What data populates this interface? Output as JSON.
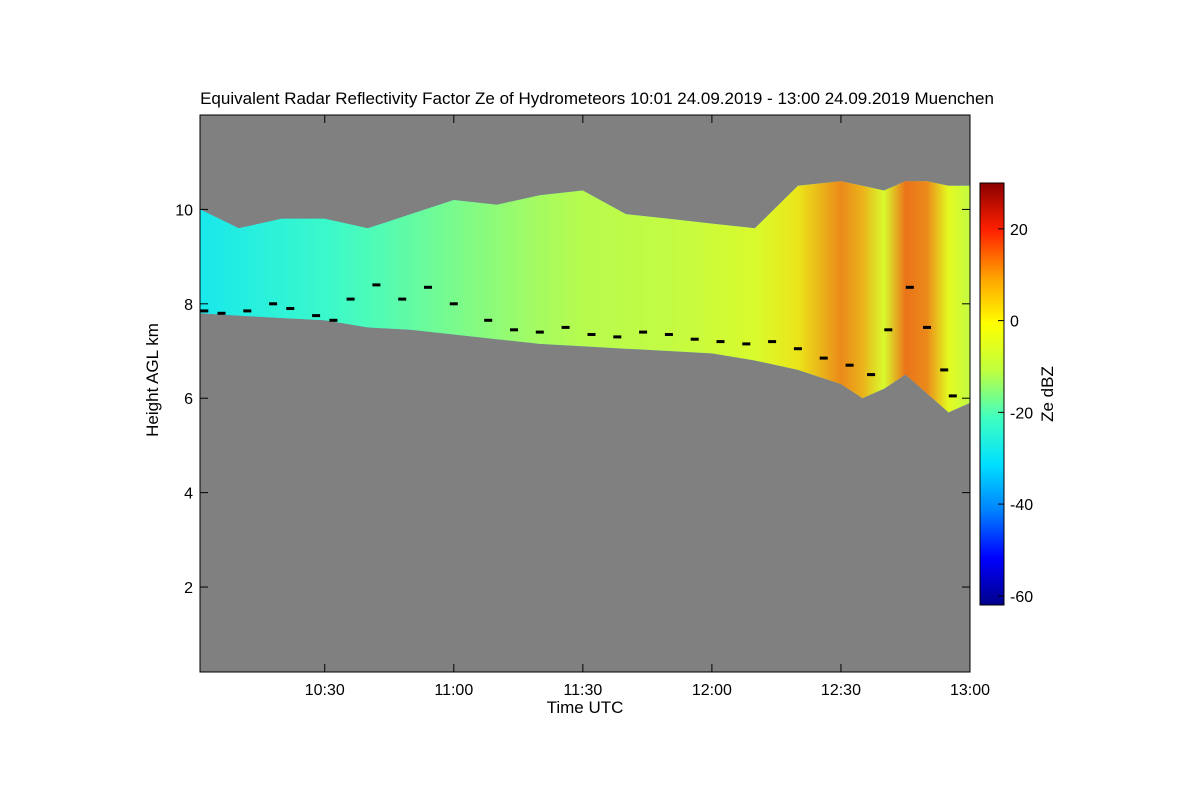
{
  "chart_data": {
    "type": "heatmap",
    "title": "Equivalent Radar Reflectivity Factor Ze of Hydrometeors   10:01 24.09.2019 - 13:00 24.09.2019 Muenchen",
    "xlabel": "Time UTC",
    "ylabel": "Height AGL km",
    "colorbar_label": "Ze dBZ",
    "x_range_minutes_utc": [
      601,
      780
    ],
    "ylim": [
      0.2,
      12.0
    ],
    "colorbar_range": [
      -62,
      30
    ],
    "x_ticks": [
      {
        "minute": 630,
        "label": "10:30"
      },
      {
        "minute": 660,
        "label": "11:00"
      },
      {
        "minute": 690,
        "label": "11:30"
      },
      {
        "minute": 720,
        "label": "12:00"
      },
      {
        "minute": 750,
        "label": "12:30"
      },
      {
        "minute": 780,
        "label": "13:00"
      }
    ],
    "y_ticks": [
      {
        "value": 2,
        "label": "2"
      },
      {
        "value": 4,
        "label": "4"
      },
      {
        "value": 6,
        "label": "6"
      },
      {
        "value": 8,
        "label": "8"
      },
      {
        "value": 10,
        "label": "10"
      }
    ],
    "colorbar_ticks": [
      {
        "value": 20,
        "label": "20"
      },
      {
        "value": 0,
        "label": "0"
      },
      {
        "value": -20,
        "label": "-20"
      },
      {
        "value": -40,
        "label": "-40"
      },
      {
        "value": -60,
        "label": "-60"
      }
    ],
    "colors": {
      "background": "#808080",
      "colormap": [
        "#00008b",
        "#0000ff",
        "#0080ff",
        "#00e0ff",
        "#40ffc0",
        "#c0ff40",
        "#ffff00",
        "#ffa000",
        "#ff2000",
        "#8b0000"
      ],
      "melting_layer_marker": "#000000"
    },
    "cloud_layer": {
      "time_minutes": [
        601,
        610,
        620,
        630,
        640,
        650,
        660,
        670,
        680,
        690,
        700,
        710,
        720,
        730,
        740,
        750,
        755,
        760,
        765,
        770,
        775,
        780
      ],
      "top_km": [
        10.0,
        9.6,
        9.8,
        9.8,
        9.6,
        9.9,
        10.2,
        10.1,
        10.3,
        10.4,
        9.9,
        9.8,
        9.7,
        9.6,
        10.5,
        10.6,
        10.5,
        10.4,
        10.6,
        10.6,
        10.5,
        10.5
      ],
      "base_km": [
        7.8,
        7.75,
        7.7,
        7.65,
        7.5,
        7.45,
        7.35,
        7.25,
        7.15,
        7.1,
        7.05,
        7.0,
        6.95,
        6.8,
        6.6,
        6.3,
        6.0,
        6.2,
        6.5,
        6.1,
        5.7,
        5.9
      ],
      "mean_ze_dbz": [
        -28,
        -26,
        -24,
        -22,
        -20,
        -18,
        -16,
        -14,
        -12,
        -10,
        -9,
        -8,
        -6,
        -4,
        2,
        12,
        8,
        -4,
        14,
        12,
        -2,
        -8
      ]
    },
    "melting_layer_markers": {
      "time_minutes": [
        602,
        606,
        612,
        618,
        622,
        628,
        632,
        636,
        642,
        648,
        654,
        660,
        668,
        674,
        680,
        686,
        692,
        698,
        704,
        710,
        716,
        722,
        728,
        734,
        740,
        746,
        752,
        757,
        761,
        766,
        770,
        774,
        776
      ],
      "height_km": [
        7.85,
        7.8,
        7.85,
        8.0,
        7.9,
        7.75,
        7.65,
        8.1,
        8.4,
        8.1,
        8.35,
        8.0,
        7.65,
        7.45,
        7.4,
        7.5,
        7.35,
        7.3,
        7.4,
        7.35,
        7.25,
        7.2,
        7.15,
        7.2,
        7.05,
        6.85,
        6.7,
        6.5,
        7.45,
        8.35,
        7.5,
        6.6,
        6.05
      ]
    }
  }
}
